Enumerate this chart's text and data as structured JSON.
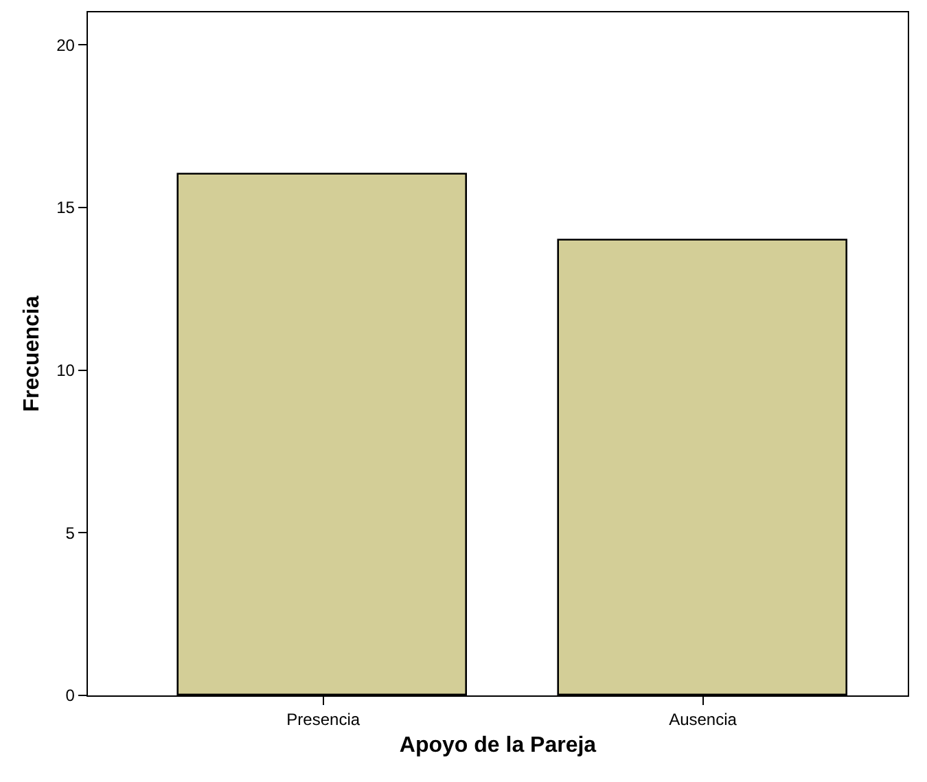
{
  "chart_data": {
    "type": "bar",
    "xlabel": "Apoyo de la Pareja",
    "ylabel": "Frecuencia",
    "categories": [
      "Presencia",
      "Ausencia"
    ],
    "values": [
      16,
      14
    ],
    "color": "#d3ce97",
    "ylim": [
      0,
      21
    ],
    "yticks": [
      0,
      5,
      10,
      15,
      20
    ],
    "grid": false
  }
}
